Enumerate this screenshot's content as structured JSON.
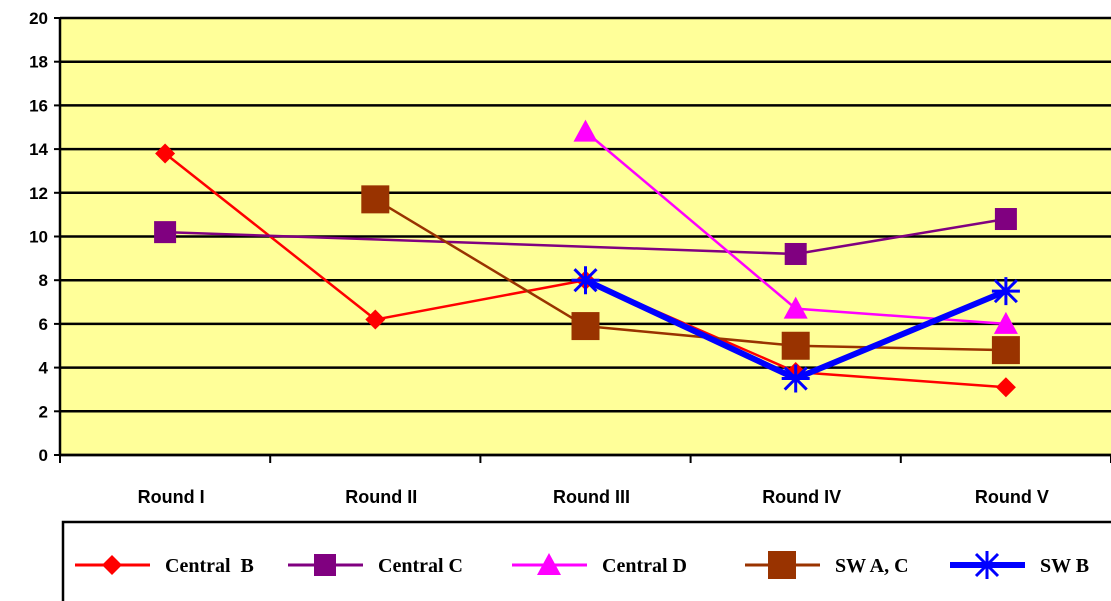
{
  "chart_data": {
    "type": "line",
    "title": "",
    "xlabel": "",
    "ylabel": "",
    "categories": [
      "Round I",
      "Round II",
      "Round III",
      "Round IV",
      "Round V"
    ],
    "ylim": [
      0,
      20
    ],
    "yticks": [
      "0",
      "2",
      "4",
      "6",
      "8",
      "10",
      "12",
      "14",
      "16",
      "18",
      "20"
    ],
    "grid": true,
    "legend_position": "bottom",
    "plot_background": "#FFFF99",
    "series": [
      {
        "name": "Central  B",
        "color": "#FF0000",
        "marker": "diamond",
        "values": [
          13.8,
          6.2,
          8.0,
          3.8,
          3.1
        ]
      },
      {
        "name": "Central C",
        "color": "#800080",
        "marker": "square",
        "values": [
          10.2,
          null,
          null,
          9.2,
          10.8
        ]
      },
      {
        "name": "Central D",
        "color": "#FF00FF",
        "marker": "triangle",
        "values": [
          null,
          null,
          14.8,
          6.7,
          6.0
        ]
      },
      {
        "name": "SW A, C",
        "color": "#993300",
        "marker": "square-large",
        "values": [
          null,
          11.7,
          5.9,
          5.0,
          4.8
        ]
      },
      {
        "name": "SW B",
        "color": "#0000FF",
        "marker": "asterisk",
        "values": [
          null,
          null,
          8.0,
          3.5,
          7.5
        ]
      }
    ]
  }
}
